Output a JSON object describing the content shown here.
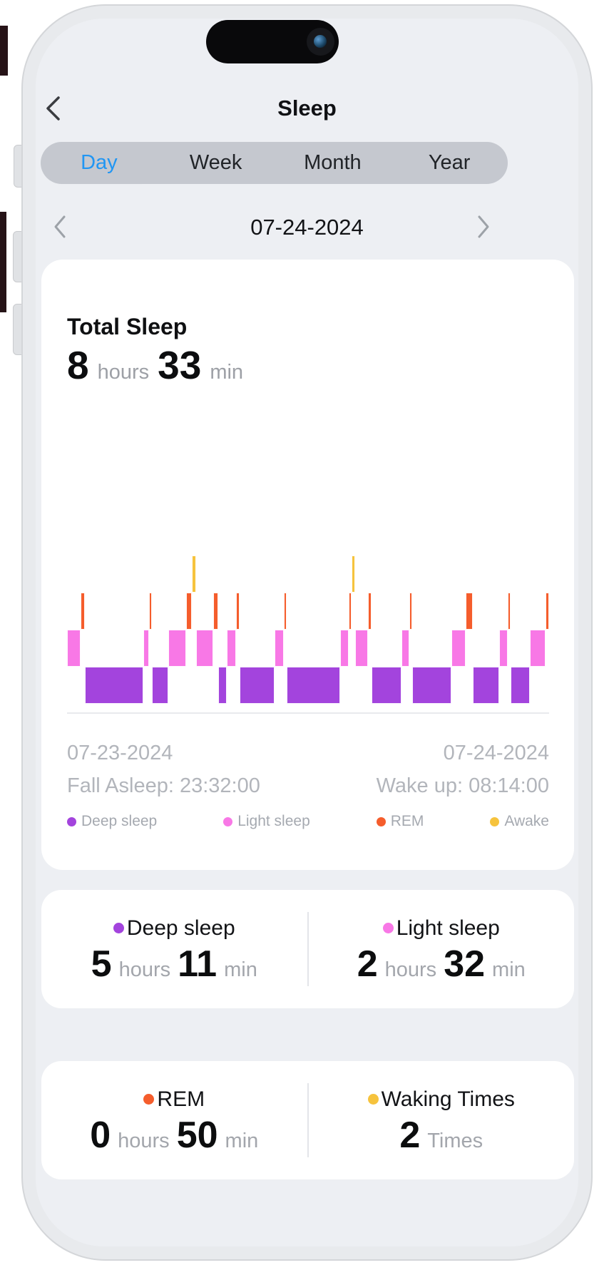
{
  "header": {
    "title": "Sleep"
  },
  "tabs": {
    "items": [
      "Day",
      "Week",
      "Month",
      "Year"
    ],
    "selected": "Day",
    "selected_color": "#2196f3"
  },
  "date_nav": {
    "date": "07-24-2024"
  },
  "sleep_card": {
    "title": "Total Sleep",
    "total_hours": "8",
    "hours_unit": "hours",
    "total_minutes": "33",
    "minutes_unit": "min",
    "start_date": "07-23-2024",
    "end_date": "07-24-2024",
    "fall_asleep": "Fall Asleep: 23:32:00",
    "wake_up": "Wake up: 08:14:00",
    "legend": [
      {
        "label": "Deep sleep",
        "color": "#a344dd"
      },
      {
        "label": "Light sleep",
        "color": "#f878e6"
      },
      {
        "label": "REM",
        "color": "#f55d2c"
      },
      {
        "label": "Awake",
        "color": "#f6c33d"
      }
    ]
  },
  "chart_data": {
    "type": "hypnogram-bar",
    "start_time": "23:32:00",
    "end_time": "08:14:00",
    "total_span_minutes": 522,
    "stage_rows": {
      "awake": 0,
      "rem": 1,
      "light": 2,
      "deep": 3
    },
    "colors": {
      "deep": "#a344dd",
      "light": "#f878e6",
      "rem": "#f55d2c",
      "awake": "#f6c33d"
    },
    "totals_minutes": {
      "deep": 311,
      "light": 152,
      "rem": 50,
      "awake": 9
    },
    "waking_count": 2,
    "segments": [
      {
        "stage": "light",
        "minutes": 15
      },
      {
        "stage": "rem",
        "minutes": 4
      },
      {
        "stage": "deep",
        "minutes": 64
      },
      {
        "stage": "light",
        "minutes": 6
      },
      {
        "stage": "rem",
        "minutes": 3
      },
      {
        "stage": "deep",
        "minutes": 18
      },
      {
        "stage": "light",
        "minutes": 19
      },
      {
        "stage": "rem",
        "minutes": 6
      },
      {
        "stage": "awake",
        "minutes": 5
      },
      {
        "stage": "light",
        "minutes": 18
      },
      {
        "stage": "rem",
        "minutes": 6
      },
      {
        "stage": "deep",
        "minutes": 9
      },
      {
        "stage": "light",
        "minutes": 10
      },
      {
        "stage": "rem",
        "minutes": 4
      },
      {
        "stage": "deep",
        "minutes": 38
      },
      {
        "stage": "light",
        "minutes": 10
      },
      {
        "stage": "rem",
        "minutes": 3
      },
      {
        "stage": "deep",
        "minutes": 58
      },
      {
        "stage": "light",
        "minutes": 9
      },
      {
        "stage": "rem",
        "minutes": 3
      },
      {
        "stage": "awake",
        "minutes": 4
      },
      {
        "stage": "light",
        "minutes": 14
      },
      {
        "stage": "rem",
        "minutes": 4
      },
      {
        "stage": "deep",
        "minutes": 32
      },
      {
        "stage": "light",
        "minutes": 9
      },
      {
        "stage": "rem",
        "minutes": 3
      },
      {
        "stage": "deep",
        "minutes": 42
      },
      {
        "stage": "light",
        "minutes": 16
      },
      {
        "stage": "rem",
        "minutes": 7
      },
      {
        "stage": "deep",
        "minutes": 29
      },
      {
        "stage": "light",
        "minutes": 9
      },
      {
        "stage": "rem",
        "minutes": 3
      },
      {
        "stage": "deep",
        "minutes": 21
      },
      {
        "stage": "light",
        "minutes": 17
      },
      {
        "stage": "rem",
        "minutes": 4
      }
    ]
  },
  "stats": [
    {
      "left": {
        "dot": "#a344dd",
        "label": "Deep sleep",
        "value1": "5",
        "unit1": "hours",
        "value2": "11",
        "unit2": "min"
      },
      "right": {
        "dot": "#f878e6",
        "label": "Light sleep",
        "value1": "2",
        "unit1": "hours",
        "value2": "32",
        "unit2": "min"
      }
    },
    {
      "left": {
        "dot": "#f55d2c",
        "label": "REM",
        "value1": "0",
        "unit1": "hours",
        "value2": "50",
        "unit2": "min"
      },
      "right": {
        "dot": "#f6c33d",
        "label": "Waking Times",
        "value1": "2",
        "unit1": "Times"
      }
    }
  ]
}
